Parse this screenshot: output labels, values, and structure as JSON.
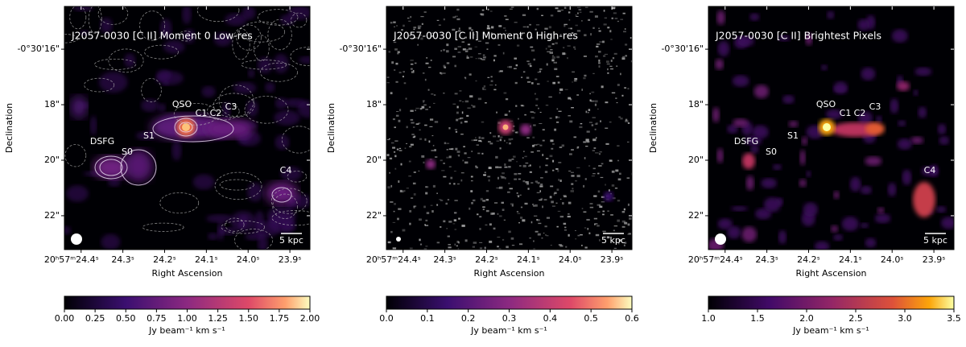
{
  "chart_data": [
    {
      "type": "image",
      "title": "J2057-0030 [C II] Moment 0 Low-res",
      "xlabel": "Right Ascension",
      "ylabel": "Declination",
      "xlim": [
        24.44,
        23.852
      ],
      "xticks": [
        {
          "value": 24.4,
          "label": "20ʰ57ᵐ24.4ˢ"
        },
        {
          "value": 24.3,
          "label": "24.3ˢ"
        },
        {
          "value": 24.2,
          "label": "24.2ˢ"
        },
        {
          "value": 24.1,
          "label": "24.1ˢ"
        },
        {
          "value": 24.0,
          "label": "24.0ˢ"
        },
        {
          "value": 23.9,
          "label": "23.9ˢ"
        }
      ],
      "ylim": [
        14.46,
        23.22
      ],
      "yticks": [
        {
          "value": 16,
          "label": "-0°30'16\""
        },
        {
          "value": 18,
          "label": "18\""
        },
        {
          "value": 20,
          "label": "20\""
        },
        {
          "value": 22,
          "label": "22\""
        }
      ],
      "colormap": "magma",
      "colorbar_label": "Jy beam⁻¹ km s⁻¹",
      "colorbar_lim": [
        0,
        2
      ],
      "colorbar_ticks": [
        {
          "value": 0,
          "label": "0.00"
        },
        {
          "value": 0.25,
          "label": "0.25"
        },
        {
          "value": 0.5,
          "label": "0.50"
        },
        {
          "value": 0.75,
          "label": "0.75"
        },
        {
          "value": 1,
          "label": "1.00"
        },
        {
          "value": 1.25,
          "label": "1.25"
        },
        {
          "value": 1.5,
          "label": "1.50"
        },
        {
          "value": 1.75,
          "label": "1.75"
        },
        {
          "value": 2,
          "label": "2.00"
        }
      ],
      "annotations": [
        "QSO",
        "C1",
        "C2",
        "C3",
        "DSFG",
        "S0",
        "S1",
        "C4"
      ],
      "scalebar": "5 kpc"
    },
    {
      "type": "image",
      "title": "J2057-0030 [C II] Moment 0 High-res",
      "xlabel": "Right Ascension",
      "ylabel": "Declination",
      "xlim": [
        24.44,
        23.852
      ],
      "xticks": [
        {
          "value": 24.4,
          "label": "20ʰ57ᵐ24.4ˢ"
        },
        {
          "value": 24.3,
          "label": "24.3ˢ"
        },
        {
          "value": 24.2,
          "label": "24.2ˢ"
        },
        {
          "value": 24.1,
          "label": "24.1ˢ"
        },
        {
          "value": 24.0,
          "label": "24.0ˢ"
        },
        {
          "value": 23.9,
          "label": "23.9ˢ"
        }
      ],
      "ylim": [
        14.46,
        23.22
      ],
      "yticks": [
        {
          "value": 16,
          "label": "-0°30'16\""
        },
        {
          "value": 18,
          "label": "18\""
        },
        {
          "value": 20,
          "label": "20\""
        },
        {
          "value": 22,
          "label": "22\""
        }
      ],
      "colormap": "magma",
      "colorbar_label": "Jy beam⁻¹ km s⁻¹",
      "colorbar_lim": [
        0,
        0.6
      ],
      "colorbar_ticks": [
        {
          "value": 0,
          "label": "0.0"
        },
        {
          "value": 0.1,
          "label": "0.1"
        },
        {
          "value": 0.2,
          "label": "0.2"
        },
        {
          "value": 0.3,
          "label": "0.3"
        },
        {
          "value": 0.4,
          "label": "0.4"
        },
        {
          "value": 0.5,
          "label": "0.5"
        },
        {
          "value": 0.6,
          "label": "0.6"
        }
      ],
      "scalebar": "5 kpc"
    },
    {
      "type": "image",
      "title": "J2057-0030 [C II] Brightest Pixels",
      "xlabel": "Right Ascension",
      "ylabel": "Declination",
      "xlim": [
        24.44,
        23.852
      ],
      "xticks": [
        {
          "value": 24.4,
          "label": "20ʰ57ᵐ24.4ˢ"
        },
        {
          "value": 24.3,
          "label": "24.3ˢ"
        },
        {
          "value": 24.2,
          "label": "24.2ˢ"
        },
        {
          "value": 24.1,
          "label": "24.1ˢ"
        },
        {
          "value": 24.0,
          "label": "24.0ˢ"
        },
        {
          "value": 23.9,
          "label": "23.9ˢ"
        }
      ],
      "ylim": [
        14.46,
        23.22
      ],
      "yticks": [
        {
          "value": 16,
          "label": "-0°30'16\""
        },
        {
          "value": 18,
          "label": "18\""
        },
        {
          "value": 20,
          "label": "20\""
        },
        {
          "value": 22,
          "label": "22\""
        }
      ],
      "colormap": "inferno",
      "colorbar_label": "Jy beam⁻¹ km s⁻¹",
      "colorbar_lim": [
        1,
        3.5
      ],
      "colorbar_ticks": [
        {
          "value": 1,
          "label": "1.0"
        },
        {
          "value": 1.5,
          "label": "1.5"
        },
        {
          "value": 2,
          "label": "2.0"
        },
        {
          "value": 2.5,
          "label": "2.5"
        },
        {
          "value": 3,
          "label": "3.0"
        },
        {
          "value": 3.5,
          "label": "3.5"
        }
      ],
      "annotations": [
        "QSO",
        "C1",
        "C2",
        "C3",
        "DSFG",
        "S0",
        "S1",
        "C4"
      ],
      "scalebar": "5 kpc"
    }
  ]
}
